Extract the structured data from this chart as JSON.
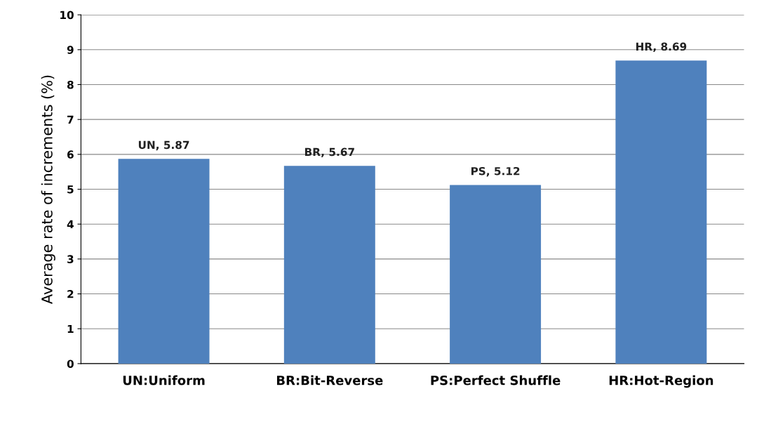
{
  "chart_data": {
    "type": "bar",
    "ylabel": "Average rate of increments (%)",
    "categories": [
      "UN:Uniform",
      "BR:Bit-Reverse",
      "PS:Perfect Shuffle",
      "HR:Hot-Region"
    ],
    "values": [
      5.87,
      5.67,
      5.12,
      8.69
    ],
    "value_labels": [
      "UN, 5.87",
      "BR, 5.67",
      "PS, 5.12",
      "HR, 8.69"
    ],
    "color": "#4f81bd",
    "ylim": [
      0,
      10
    ],
    "yticks": [
      0,
      1,
      2,
      3,
      4,
      5,
      6,
      7,
      8,
      9,
      10
    ],
    "grid": "y",
    "legend": false
  }
}
